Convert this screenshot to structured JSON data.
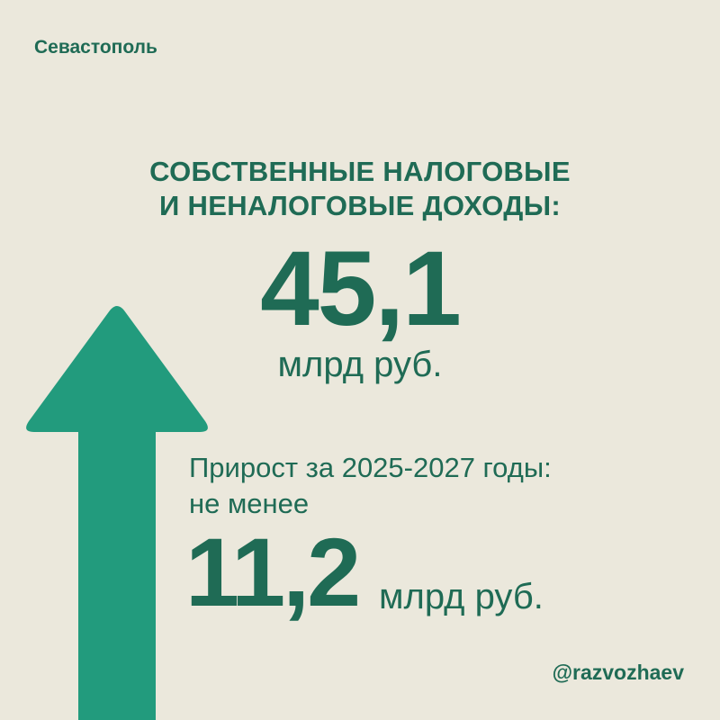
{
  "city": "Севастополь",
  "heading": {
    "line1": "СОБСТВЕННЫЕ НАЛОГОВЫЕ",
    "line2": "И НЕНАЛОГОВЫЕ ДОХОДЫ:"
  },
  "main": {
    "value": "45,1",
    "unit": "млрд руб."
  },
  "growth": {
    "label_line1": "Прирост за 2025-2027 годы:",
    "label_line2": "не менее",
    "value": "11,2",
    "unit": "млрд руб."
  },
  "handle": "@razvozhaev",
  "icons": {
    "arrow": "arrow-up-icon"
  },
  "colors": {
    "background": "#ebe8dc",
    "text": "#1f6b55",
    "arrow": "#229b7d"
  }
}
